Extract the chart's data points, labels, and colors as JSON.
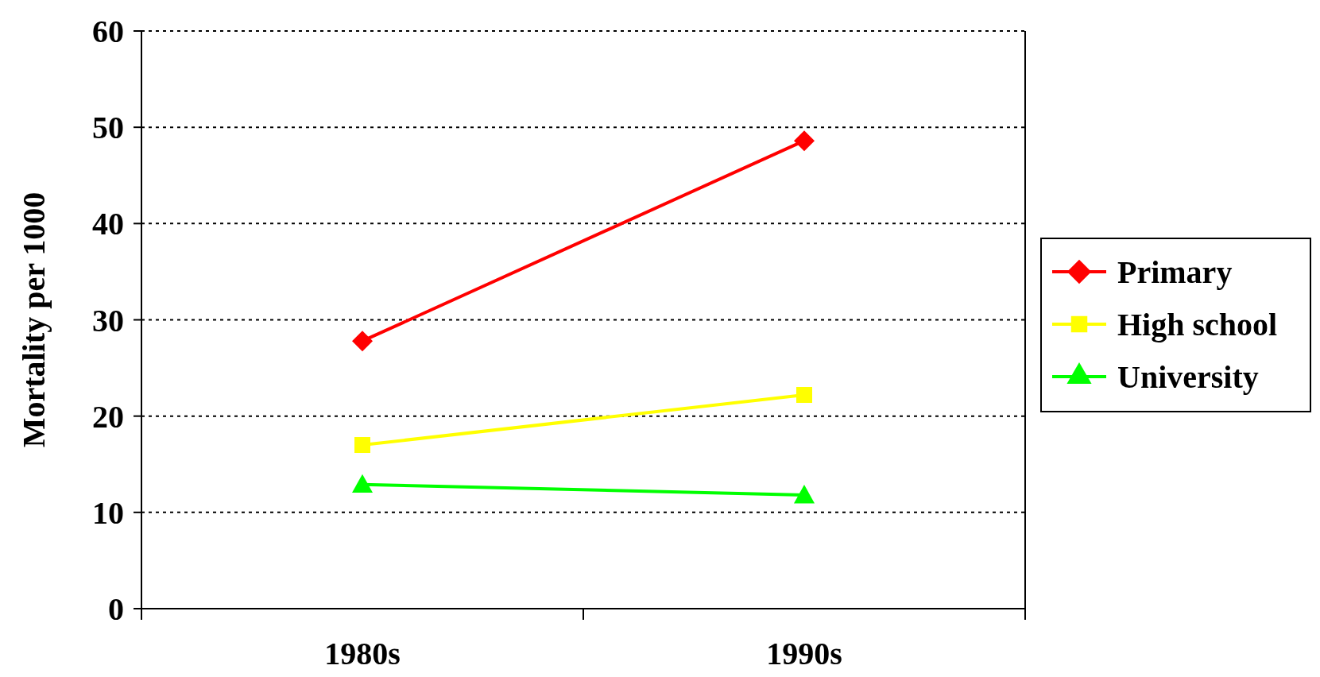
{
  "chart_data": {
    "type": "line",
    "ylabel": "Mortality per 1000",
    "categories": [
      "1980s",
      "1990s"
    ],
    "series": [
      {
        "name": "Primary",
        "color": "#ff0000",
        "values": [
          27.8,
          48.6
        ],
        "marker": "diamond"
      },
      {
        "name": "High school",
        "color": "#ffff00",
        "values": [
          17.0,
          22.2
        ],
        "marker": "square"
      },
      {
        "name": "University",
        "color": "#00ff00",
        "values": [
          12.9,
          11.8
        ],
        "marker": "triangle"
      }
    ],
    "ylim": [
      0,
      60
    ],
    "yticks": [
      0,
      10,
      20,
      30,
      40,
      50,
      60
    ],
    "grid": "y",
    "legend": "right",
    "line_style": "solid"
  }
}
